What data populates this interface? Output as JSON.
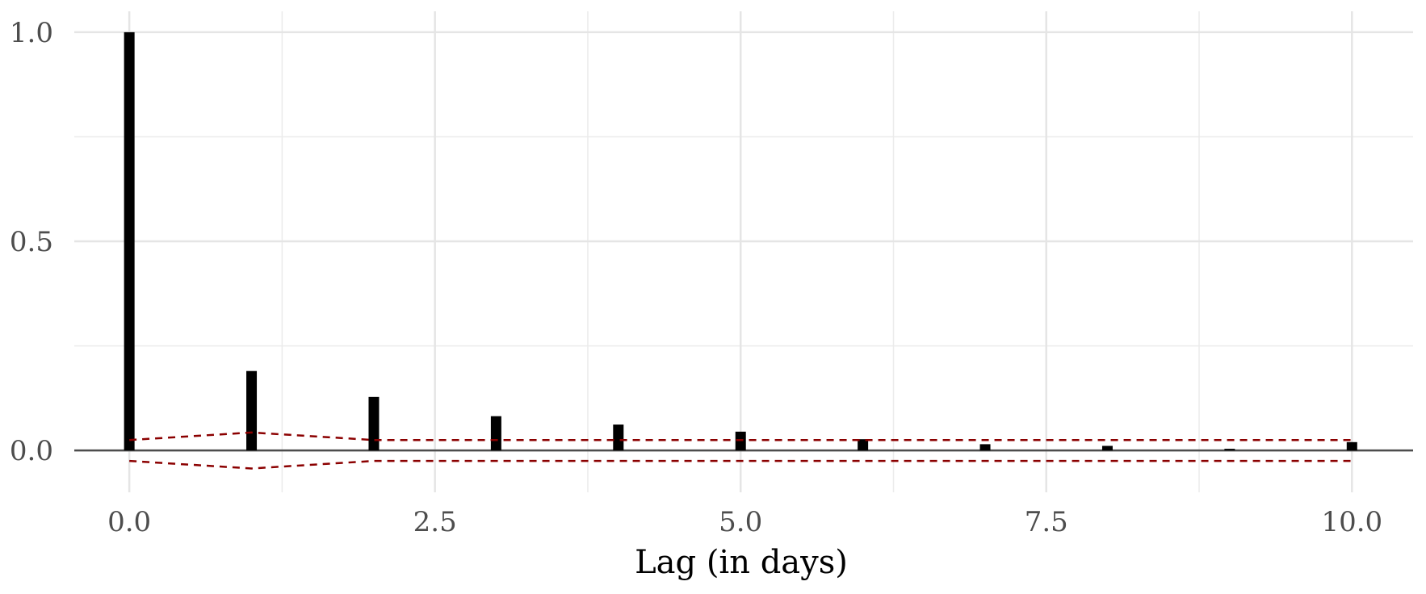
{
  "chart_data": {
    "type": "bar",
    "title": "",
    "xlabel": "Lag (in days)",
    "ylabel": "",
    "x": [
      0,
      1,
      2,
      3,
      4,
      5,
      6,
      7,
      8,
      9,
      10
    ],
    "values": [
      1.0,
      0.19,
      0.128,
      0.082,
      0.062,
      0.045,
      0.027,
      0.015,
      0.011,
      0.004,
      0.02
    ],
    "confidence_band": {
      "upper": [
        0.025,
        0.043,
        0.025,
        0.025,
        0.025,
        0.025,
        0.025,
        0.025,
        0.025,
        0.025,
        0.025
      ],
      "lower": [
        -0.025,
        -0.043,
        -0.025,
        -0.025,
        -0.025,
        -0.025,
        -0.025,
        -0.025,
        -0.025,
        -0.025,
        -0.025
      ],
      "color": "#8b0000",
      "style": "dashed"
    },
    "xlim": [
      -0.45,
      10.5
    ],
    "ylim": [
      -0.1,
      1.05
    ],
    "x_ticks": [
      0,
      2.5,
      5,
      7.5,
      10
    ],
    "x_tick_labels": [
      "0.0",
      "2.5",
      "5.0",
      "7.5",
      "10.0"
    ],
    "y_ticks": [
      0,
      0.5,
      1
    ],
    "y_tick_labels": [
      "0.0",
      "0.5",
      "1.0"
    ],
    "grid": true,
    "bar_color": "#000000",
    "zero_line_color": "#4d4d4d"
  }
}
